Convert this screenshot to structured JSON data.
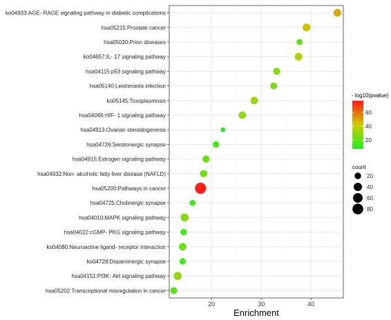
{
  "chart_data": {
    "type": "scatter",
    "xlabel": "Enrichment",
    "ylabel": "",
    "xlim": [
      11.5,
      46.5
    ],
    "x_ticks": [
      20,
      30,
      40
    ],
    "grid": true,
    "legend_placement": "right",
    "points": [
      {
        "label": "ko04933:AGE- RAGE signaling pathway in diabetic complications",
        "enrichment": 45.3,
        "count": 14,
        "neglog10p": 49
      },
      {
        "label": "hsa05215:Prostate cancer",
        "enrichment": 39.1,
        "count": 15,
        "neglog10p": 43
      },
      {
        "label": "hsa05020:Prion diseases",
        "enrichment": 37.7,
        "count": 7,
        "neglog10p": 21
      },
      {
        "label": "ko04657:IL- 17 signaling pathway",
        "enrichment": 37.5,
        "count": 14,
        "neglog10p": 37
      },
      {
        "label": "hsa04115:p53 signaling pathway",
        "enrichment": 33.1,
        "count": 11,
        "neglog10p": 27
      },
      {
        "label": "hsa05140:Leishmania infection",
        "enrichment": 32.5,
        "count": 10,
        "neglog10p": 25
      },
      {
        "label": "ko05145:Toxoplasmosis",
        "enrichment": 28.6,
        "count": 13,
        "neglog10p": 33
      },
      {
        "label": "hsa04066:HIF- 1 signaling pathway",
        "enrichment": 26.2,
        "count": 13,
        "neglog10p": 30
      },
      {
        "label": "hsa04913:Ovarian steroidogenesis",
        "enrichment": 22.3,
        "count": 3,
        "neglog10p": 9
      },
      {
        "label": "hsa04726:Serotonergic synapse",
        "enrichment": 20.9,
        "count": 9,
        "neglog10p": 17
      },
      {
        "label": "hsa04915:Estrogen signaling pathway",
        "enrichment": 18.9,
        "count": 11,
        "neglog10p": 22
      },
      {
        "label": "hsa04932:Non- alcoholic fatty liver disease (NAFLD)",
        "enrichment": 18.4,
        "count": 12,
        "neglog10p": 23
      },
      {
        "label": "hsa05200:Pathways in cancer",
        "enrichment": 17.8,
        "count": 38,
        "neglog10p": 76
      },
      {
        "label": "hsa04725:Cholinergic synapse",
        "enrichment": 16.2,
        "count": 7,
        "neglog10p": 14
      },
      {
        "label": "hsa04010:MAPK signaling pathway",
        "enrichment": 14.6,
        "count": 16,
        "neglog10p": 27
      },
      {
        "label": "hsa04022:cGMP- PKG signaling pathway",
        "enrichment": 14.4,
        "count": 9,
        "neglog10p": 16
      },
      {
        "label": "ko04080:Neuroactive ligand- receptor interaction",
        "enrichment": 14.2,
        "count": 13,
        "neglog10p": 22
      },
      {
        "label": "ko04728:Dopaminergic synapse",
        "enrichment": 14.2,
        "count": 8,
        "neglog10p": 14
      },
      {
        "label": "hsa04151:PI3K- Akt signaling pathway",
        "enrichment": 13.2,
        "count": 16,
        "neglog10p": 30
      },
      {
        "label": "hsa05202:Transcriptional misregulation in cancer",
        "enrichment": 12.4,
        "count": 10,
        "neglog10p": 18
      }
    ],
    "color_legend": {
      "title": "- log10(pvalue)",
      "ticks": [
        20,
        40,
        60
      ],
      "range": [
        7,
        77
      ],
      "low_color": "#22ee22",
      "mid_color": "#cccc00",
      "high_color": "#ff1a1a"
    },
    "size_legend": {
      "title": "count",
      "values": [
        20,
        40,
        60,
        80
      ]
    }
  }
}
